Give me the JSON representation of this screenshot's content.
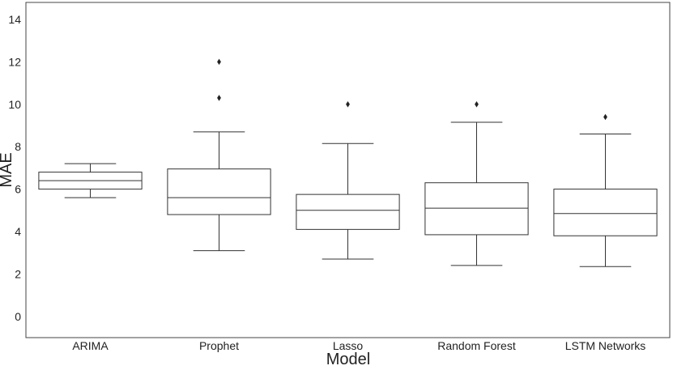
{
  "chart_data": {
    "type": "boxplot",
    "xlabel": "Model",
    "ylabel": "MAE",
    "ylim": [
      -1,
      14.8
    ],
    "yticks": [
      0,
      2,
      4,
      6,
      8,
      10,
      12,
      14
    ],
    "grid": false,
    "categories": [
      "ARIMA",
      "Prophet",
      "Lasso",
      "Random Forest",
      "LSTM Networks"
    ],
    "boxes": [
      {
        "category": "ARIMA",
        "whisker_low": 5.6,
        "q1": 6.0,
        "median": 6.4,
        "q3": 6.8,
        "whisker_high": 7.2,
        "outliers": []
      },
      {
        "category": "Prophet",
        "whisker_low": 3.1,
        "q1": 4.8,
        "median": 5.6,
        "q3": 6.95,
        "whisker_high": 8.7,
        "outliers": [
          10.3,
          12.0
        ]
      },
      {
        "category": "Lasso",
        "whisker_low": 2.7,
        "q1": 4.1,
        "median": 5.0,
        "q3": 5.75,
        "whisker_high": 8.15,
        "outliers": [
          10.0
        ]
      },
      {
        "category": "Random Forest",
        "whisker_low": 2.4,
        "q1": 3.85,
        "median": 5.1,
        "q3": 6.3,
        "whisker_high": 9.15,
        "outliers": [
          10.0
        ]
      },
      {
        "category": "LSTM Networks",
        "whisker_low": 2.35,
        "q1": 3.8,
        "median": 4.85,
        "q3": 6.0,
        "whisker_high": 8.6,
        "outliers": [
          9.4
        ]
      }
    ]
  }
}
